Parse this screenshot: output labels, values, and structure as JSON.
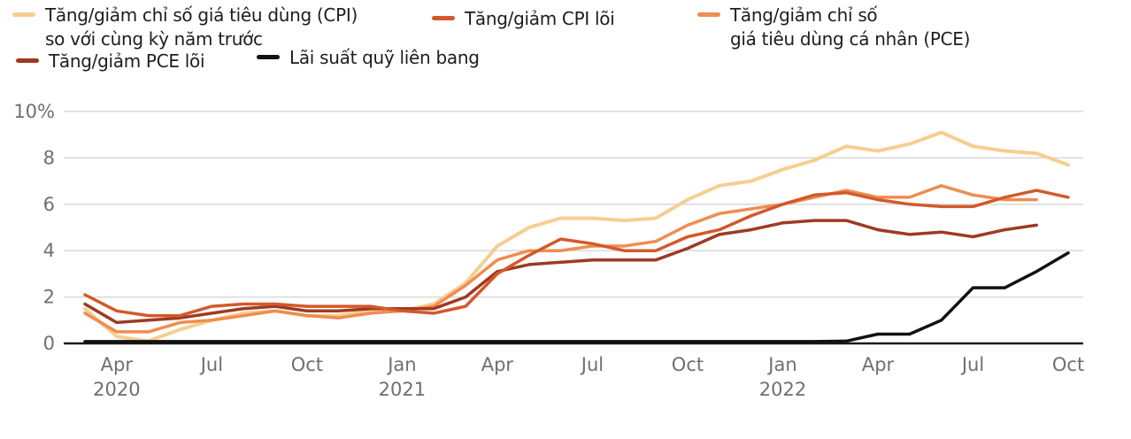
{
  "legend": {
    "items": [
      {
        "key": "cpi",
        "swatch": "#F6CE90",
        "line1": "Tăng/giảm chỉ số giá tiêu dùng (CPI)",
        "line2": "so với cùng kỳ năm trước"
      },
      {
        "key": "core_cpi",
        "swatch": "#D3592A",
        "line1": "Tăng/giảm CPI lõi",
        "line2": ""
      },
      {
        "key": "pce",
        "swatch": "#EF8D4F",
        "line1": "Tăng/giảm chỉ số",
        "line2": "giá tiêu dùng cá nhân (PCE)"
      },
      {
        "key": "core_pce",
        "swatch": "#9E3A23",
        "line1": "Tăng/giảm PCE lõi",
        "line2": ""
      },
      {
        "key": "fed_funds",
        "swatch": "#111111",
        "line1": "Lãi suất quỹ liên bang",
        "line2": ""
      }
    ]
  },
  "chart_data": {
    "type": "line",
    "x_unit": "month",
    "months": [
      "Mar 2020",
      "Apr 2020",
      "May 2020",
      "Jun 2020",
      "Jul 2020",
      "Aug 2020",
      "Sep 2020",
      "Oct 2020",
      "Nov 2020",
      "Dec 2020",
      "Jan 2021",
      "Feb 2021",
      "Mar 2021",
      "Apr 2021",
      "May 2021",
      "Jun 2021",
      "Jul 2021",
      "Aug 2021",
      "Sep 2021",
      "Oct 2021",
      "Nov 2021",
      "Dec 2021",
      "Jan 2022",
      "Feb 2022",
      "Mar 2022",
      "Apr 2022",
      "May 2022",
      "Jun 2022",
      "Jul 2022",
      "Aug 2022",
      "Sep 2022",
      "Oct 2022"
    ],
    "ylim": [
      0,
      10
    ],
    "yticks": [
      {
        "value": 10,
        "label": "10%"
      },
      {
        "value": 8,
        "label": "8"
      },
      {
        "value": 6,
        "label": "6"
      },
      {
        "value": 4,
        "label": "4"
      },
      {
        "value": 2,
        "label": "2"
      },
      {
        "value": 0,
        "label": "0"
      }
    ],
    "xticks": [
      {
        "label": "Apr",
        "year": "2020",
        "month_index": 1
      },
      {
        "label": "Jul",
        "month_index": 4
      },
      {
        "label": "Oct",
        "month_index": 7
      },
      {
        "label": "Jan",
        "year": "2021",
        "month_index": 10
      },
      {
        "label": "Apr",
        "month_index": 13
      },
      {
        "label": "Jul",
        "month_index": 16
      },
      {
        "label": "Oct",
        "month_index": 19
      },
      {
        "label": "Jan",
        "year": "2022",
        "month_index": 22
      },
      {
        "label": "Apr",
        "month_index": 25
      },
      {
        "label": "Jul",
        "month_index": 28
      },
      {
        "label": "Oct",
        "month_index": 31
      }
    ],
    "series": [
      {
        "key": "cpi",
        "name": "Tăng/giảm chỉ số giá tiêu dùng (CPI) so với cùng kỳ năm trước",
        "color": "#F6CE90",
        "width": 4,
        "values": [
          1.5,
          0.3,
          0.1,
          0.6,
          1.0,
          1.3,
          1.4,
          1.2,
          1.2,
          1.4,
          1.4,
          1.7,
          2.6,
          4.2,
          5.0,
          5.4,
          5.4,
          5.3,
          5.4,
          6.2,
          6.8,
          7.0,
          7.5,
          7.9,
          8.5,
          8.3,
          8.6,
          9.1,
          8.5,
          8.3,
          8.2,
          7.7
        ]
      },
      {
        "key": "pce",
        "name": "Tăng/giảm chỉ số giá tiêu dùng cá nhân (PCE)",
        "color": "#EF8D4F",
        "width": 3.5,
        "values": [
          1.3,
          0.5,
          0.5,
          0.9,
          1.0,
          1.2,
          1.4,
          1.2,
          1.1,
          1.3,
          1.4,
          1.6,
          2.5,
          3.6,
          4.0,
          4.0,
          4.2,
          4.2,
          4.4,
          5.1,
          5.6,
          5.8,
          6.0,
          6.3,
          6.6,
          6.3,
          6.3,
          6.8,
          6.4,
          6.2,
          6.2
        ]
      },
      {
        "key": "core_pce",
        "name": "Tăng/giảm PCE lõi",
        "color": "#9E3A23",
        "width": 3.5,
        "values": [
          1.7,
          0.9,
          1.0,
          1.1,
          1.3,
          1.5,
          1.6,
          1.4,
          1.4,
          1.5,
          1.5,
          1.5,
          2.0,
          3.1,
          3.4,
          3.5,
          3.6,
          3.6,
          3.6,
          4.1,
          4.7,
          4.9,
          5.2,
          5.3,
          5.3,
          4.9,
          4.7,
          4.8,
          4.6,
          4.9,
          5.1
        ]
      },
      {
        "key": "core_cpi",
        "name": "Tăng/giảm CPI lõi",
        "color": "#D3592A",
        "width": 3.5,
        "values": [
          2.1,
          1.4,
          1.2,
          1.2,
          1.6,
          1.7,
          1.7,
          1.6,
          1.6,
          1.6,
          1.4,
          1.3,
          1.6,
          3.0,
          3.8,
          4.5,
          4.3,
          4.0,
          4.0,
          4.6,
          4.9,
          5.5,
          6.0,
          6.4,
          6.5,
          6.2,
          6.0,
          5.9,
          5.9,
          6.3,
          6.6,
          6.3
        ]
      },
      {
        "key": "fed_funds",
        "name": "Lãi suất quỹ liên bang",
        "color": "#111111",
        "width": 3.5,
        "values": [
          0.08,
          0.08,
          0.08,
          0.08,
          0.08,
          0.08,
          0.08,
          0.08,
          0.08,
          0.08,
          0.08,
          0.08,
          0.08,
          0.08,
          0.08,
          0.08,
          0.08,
          0.08,
          0.08,
          0.08,
          0.08,
          0.08,
          0.08,
          0.08,
          0.1,
          0.4,
          0.4,
          1.0,
          2.4,
          2.4,
          3.1,
          3.9
        ]
      }
    ],
    "colors": {
      "grid": "#d4d4d4",
      "axis": "#1a1a1a",
      "tick_label": "#6f6f6f"
    },
    "layout": {
      "x0": 96,
      "dx": 35.84,
      "y0": 388,
      "py": 26.2,
      "grid_left": 72,
      "grid_right": 1224,
      "ylabel_x": 62,
      "tick_label_y": 419,
      "year_label_y": 447,
      "tick_font_size": 21
    }
  }
}
